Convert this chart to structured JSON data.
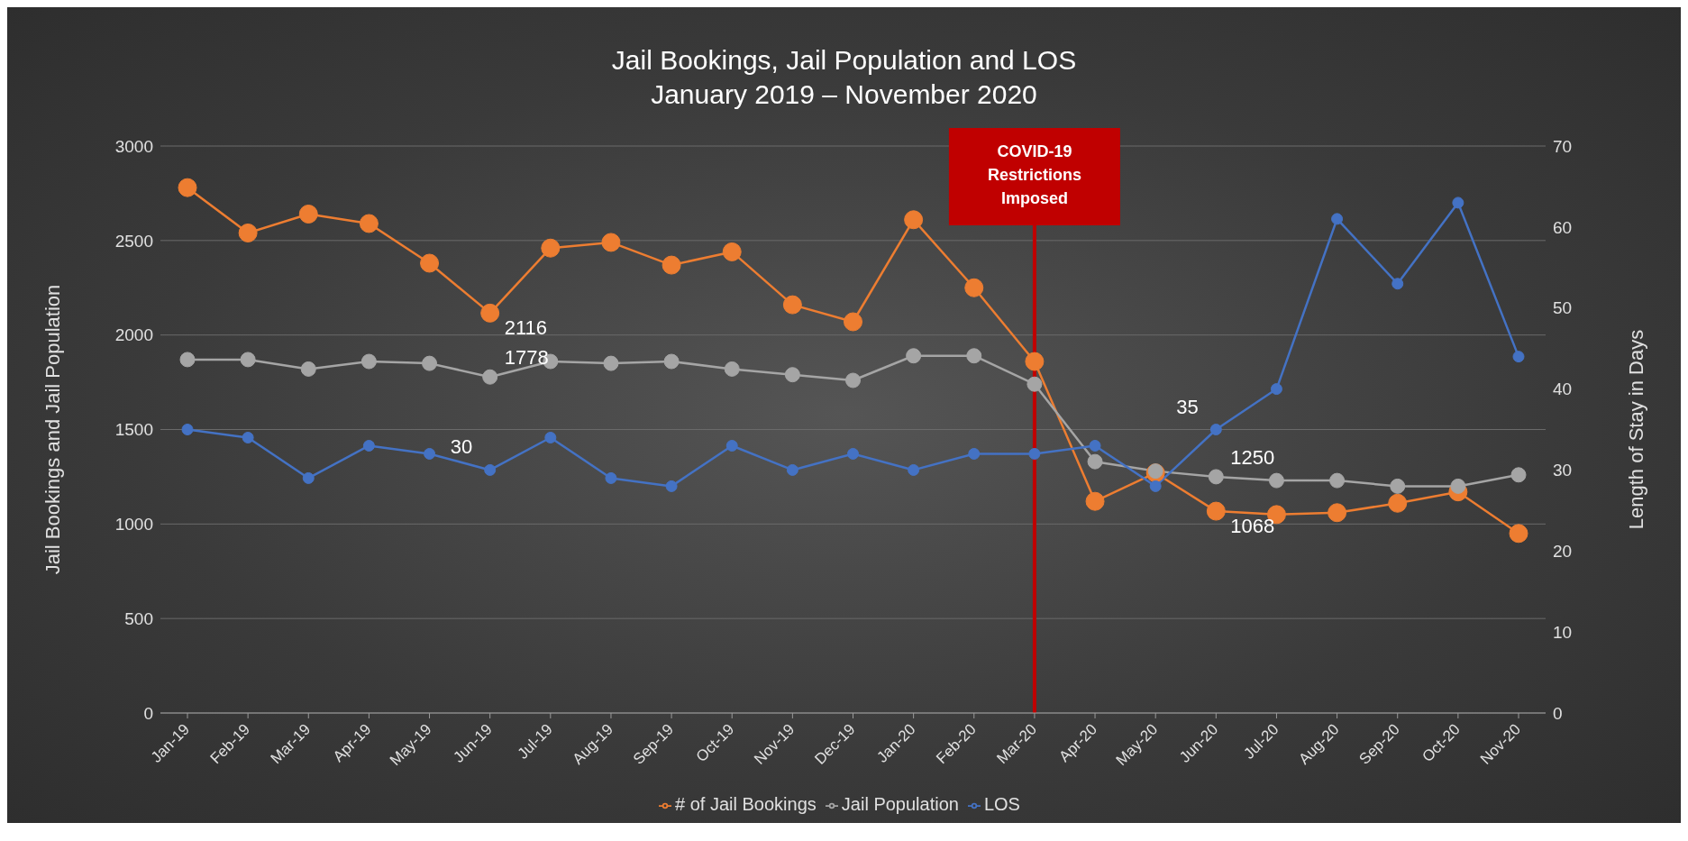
{
  "chart_data": {
    "type": "line",
    "title": "Jail Bookings, Jail Population and LOS",
    "subtitle": "January 2019 – November 2020",
    "ylabel": "Jail Bookings and Jail Population",
    "y2label": "Length of Stay in Days",
    "categories": [
      "Jan-19",
      "Feb-19",
      "Mar-19",
      "Apr-19",
      "May-19",
      "Jun-19",
      "Jul-19",
      "Aug-19",
      "Sep-19",
      "Oct-19",
      "Nov-19",
      "Dec-19",
      "Jan-20",
      "Feb-20",
      "Mar-20",
      "Apr-20",
      "May-20",
      "Jun-20",
      "Jul-20",
      "Aug-20",
      "Sep-20",
      "Oct-20",
      "Nov-20"
    ],
    "series": [
      {
        "name": "# of Jail Bookings",
        "color": "#ed7d31",
        "values": [
          2780,
          2540,
          2640,
          2590,
          2380,
          2116,
          2460,
          2490,
          2370,
          2440,
          2160,
          2070,
          2610,
          2250,
          1860,
          1120,
          1270,
          1068,
          1050,
          1060,
          1110,
          1170,
          950
        ],
        "value_labels": [
          null,
          null,
          null,
          null,
          null,
          "2116",
          null,
          null,
          null,
          null,
          null,
          null,
          null,
          null,
          null,
          null,
          null,
          "1068",
          null,
          null,
          null,
          null,
          null
        ]
      },
      {
        "name": "Jail Population",
        "color": "#a5a5a5",
        "values": [
          1870,
          1870,
          1820,
          1860,
          1850,
          1778,
          1860,
          1850,
          1860,
          1820,
          1790,
          1760,
          1890,
          1890,
          1740,
          1330,
          1280,
          1250,
          1230,
          1230,
          1200,
          1200,
          1260
        ],
        "value_labels": [
          null,
          null,
          null,
          null,
          null,
          "1778",
          null,
          null,
          null,
          null,
          null,
          null,
          null,
          null,
          null,
          null,
          null,
          "1250",
          null,
          null,
          null,
          null,
          null
        ]
      },
      {
        "name": "LOS",
        "color": "#4472c4",
        "axis": "y2",
        "values": [
          35,
          34,
          29,
          33,
          32,
          30,
          34,
          29,
          28,
          33,
          30,
          32,
          30,
          32,
          32,
          33,
          28,
          35,
          40,
          61,
          53,
          63,
          44
        ],
        "value_labels": [
          null,
          null,
          null,
          null,
          null,
          "30",
          null,
          null,
          null,
          null,
          null,
          null,
          null,
          null,
          null,
          null,
          null,
          "35",
          null,
          null,
          null,
          null,
          null
        ]
      }
    ],
    "ylim": [
      0,
      3000
    ],
    "yticks": [
      0,
      500,
      1000,
      1500,
      2000,
      2500,
      3000
    ],
    "y2lim": [
      0,
      70
    ],
    "y2ticks": [
      0,
      10,
      20,
      30,
      40,
      50,
      60,
      70
    ],
    "ref_lines": [
      {
        "axis": "x",
        "value": "Mar-20",
        "label": "COVID-19 Restrictions Imposed",
        "color": "#c00000"
      }
    ],
    "grid": "y",
    "legend": "bottom",
    "marker": "circle",
    "line_style": "solid"
  }
}
